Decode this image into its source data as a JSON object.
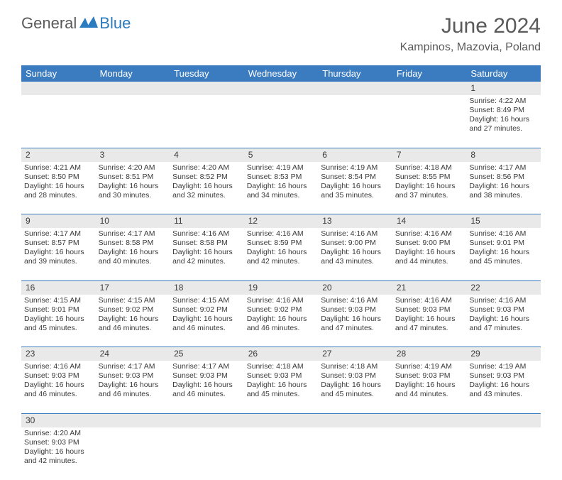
{
  "logo": {
    "text1": "General",
    "text2": "Blue"
  },
  "title": "June 2024",
  "location": "Kampinos, Mazovia, Poland",
  "colors": {
    "header_bg": "#3b7bbf",
    "header_fg": "#ffffff",
    "daynum_bg": "#e9e9e9",
    "border": "#3b7bbf",
    "text": "#3a3a3a",
    "title_text": "#5a5a5a"
  },
  "day_headers": [
    "Sunday",
    "Monday",
    "Tuesday",
    "Wednesday",
    "Thursday",
    "Friday",
    "Saturday"
  ],
  "weeks": [
    [
      null,
      null,
      null,
      null,
      null,
      null,
      {
        "n": "1",
        "sunrise": "4:22 AM",
        "sunset": "8:49 PM",
        "dl1": "16 hours",
        "dl2": "and 27 minutes."
      }
    ],
    [
      {
        "n": "2",
        "sunrise": "4:21 AM",
        "sunset": "8:50 PM",
        "dl1": "16 hours",
        "dl2": "and 28 minutes."
      },
      {
        "n": "3",
        "sunrise": "4:20 AM",
        "sunset": "8:51 PM",
        "dl1": "16 hours",
        "dl2": "and 30 minutes."
      },
      {
        "n": "4",
        "sunrise": "4:20 AM",
        "sunset": "8:52 PM",
        "dl1": "16 hours",
        "dl2": "and 32 minutes."
      },
      {
        "n": "5",
        "sunrise": "4:19 AM",
        "sunset": "8:53 PM",
        "dl1": "16 hours",
        "dl2": "and 34 minutes."
      },
      {
        "n": "6",
        "sunrise": "4:19 AM",
        "sunset": "8:54 PM",
        "dl1": "16 hours",
        "dl2": "and 35 minutes."
      },
      {
        "n": "7",
        "sunrise": "4:18 AM",
        "sunset": "8:55 PM",
        "dl1": "16 hours",
        "dl2": "and 37 minutes."
      },
      {
        "n": "8",
        "sunrise": "4:17 AM",
        "sunset": "8:56 PM",
        "dl1": "16 hours",
        "dl2": "and 38 minutes."
      }
    ],
    [
      {
        "n": "9",
        "sunrise": "4:17 AM",
        "sunset": "8:57 PM",
        "dl1": "16 hours",
        "dl2": "and 39 minutes."
      },
      {
        "n": "10",
        "sunrise": "4:17 AM",
        "sunset": "8:58 PM",
        "dl1": "16 hours",
        "dl2": "and 40 minutes."
      },
      {
        "n": "11",
        "sunrise": "4:16 AM",
        "sunset": "8:58 PM",
        "dl1": "16 hours",
        "dl2": "and 42 minutes."
      },
      {
        "n": "12",
        "sunrise": "4:16 AM",
        "sunset": "8:59 PM",
        "dl1": "16 hours",
        "dl2": "and 42 minutes."
      },
      {
        "n": "13",
        "sunrise": "4:16 AM",
        "sunset": "9:00 PM",
        "dl1": "16 hours",
        "dl2": "and 43 minutes."
      },
      {
        "n": "14",
        "sunrise": "4:16 AM",
        "sunset": "9:00 PM",
        "dl1": "16 hours",
        "dl2": "and 44 minutes."
      },
      {
        "n": "15",
        "sunrise": "4:16 AM",
        "sunset": "9:01 PM",
        "dl1": "16 hours",
        "dl2": "and 45 minutes."
      }
    ],
    [
      {
        "n": "16",
        "sunrise": "4:15 AM",
        "sunset": "9:01 PM",
        "dl1": "16 hours",
        "dl2": "and 45 minutes."
      },
      {
        "n": "17",
        "sunrise": "4:15 AM",
        "sunset": "9:02 PM",
        "dl1": "16 hours",
        "dl2": "and 46 minutes."
      },
      {
        "n": "18",
        "sunrise": "4:15 AM",
        "sunset": "9:02 PM",
        "dl1": "16 hours",
        "dl2": "and 46 minutes."
      },
      {
        "n": "19",
        "sunrise": "4:16 AM",
        "sunset": "9:02 PM",
        "dl1": "16 hours",
        "dl2": "and 46 minutes."
      },
      {
        "n": "20",
        "sunrise": "4:16 AM",
        "sunset": "9:03 PM",
        "dl1": "16 hours",
        "dl2": "and 47 minutes."
      },
      {
        "n": "21",
        "sunrise": "4:16 AM",
        "sunset": "9:03 PM",
        "dl1": "16 hours",
        "dl2": "and 47 minutes."
      },
      {
        "n": "22",
        "sunrise": "4:16 AM",
        "sunset": "9:03 PM",
        "dl1": "16 hours",
        "dl2": "and 47 minutes."
      }
    ],
    [
      {
        "n": "23",
        "sunrise": "4:16 AM",
        "sunset": "9:03 PM",
        "dl1": "16 hours",
        "dl2": "and 46 minutes."
      },
      {
        "n": "24",
        "sunrise": "4:17 AM",
        "sunset": "9:03 PM",
        "dl1": "16 hours",
        "dl2": "and 46 minutes."
      },
      {
        "n": "25",
        "sunrise": "4:17 AM",
        "sunset": "9:03 PM",
        "dl1": "16 hours",
        "dl2": "and 46 minutes."
      },
      {
        "n": "26",
        "sunrise": "4:18 AM",
        "sunset": "9:03 PM",
        "dl1": "16 hours",
        "dl2": "and 45 minutes."
      },
      {
        "n": "27",
        "sunrise": "4:18 AM",
        "sunset": "9:03 PM",
        "dl1": "16 hours",
        "dl2": "and 45 minutes."
      },
      {
        "n": "28",
        "sunrise": "4:19 AM",
        "sunset": "9:03 PM",
        "dl1": "16 hours",
        "dl2": "and 44 minutes."
      },
      {
        "n": "29",
        "sunrise": "4:19 AM",
        "sunset": "9:03 PM",
        "dl1": "16 hours",
        "dl2": "and 43 minutes."
      }
    ],
    [
      {
        "n": "30",
        "sunrise": "4:20 AM",
        "sunset": "9:03 PM",
        "dl1": "16 hours",
        "dl2": "and 42 minutes."
      },
      null,
      null,
      null,
      null,
      null,
      null
    ]
  ],
  "labels": {
    "sunrise": "Sunrise: ",
    "sunset": "Sunset: ",
    "daylight": "Daylight: "
  }
}
